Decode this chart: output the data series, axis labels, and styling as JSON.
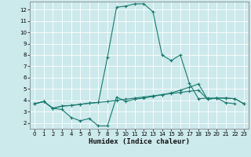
{
  "bg_color": "#cce9ec",
  "grid_color": "#ffffff",
  "line_color": "#1a7a6e",
  "xlabel": "Humidex (Indice chaleur)",
  "xlim": [
    -0.5,
    23.5
  ],
  "ylim": [
    1.5,
    12.7
  ],
  "xticks": [
    0,
    1,
    2,
    3,
    4,
    5,
    6,
    7,
    8,
    9,
    10,
    11,
    12,
    13,
    14,
    15,
    16,
    17,
    18,
    19,
    20,
    21,
    22,
    23
  ],
  "yticks": [
    2,
    3,
    4,
    5,
    6,
    7,
    8,
    9,
    10,
    11,
    12
  ],
  "series": [
    {
      "x": [
        0,
        1,
        2,
        3,
        4,
        5,
        6,
        7,
        8,
        9,
        10,
        11,
        12,
        13,
        14,
        15,
        16,
        17,
        18,
        19,
        20,
        21,
        22,
        23
      ],
      "y": [
        3.7,
        3.9,
        3.3,
        3.2,
        2.5,
        2.2,
        2.4,
        1.75,
        1.75,
        4.3,
        3.9,
        4.1,
        4.2,
        4.35,
        4.5,
        4.65,
        4.9,
        5.15,
        5.45,
        4.1,
        4.2,
        4.2,
        4.15,
        3.7
      ]
    },
    {
      "x": [
        0,
        1,
        2,
        3,
        4,
        5,
        6,
        7,
        8,
        9,
        10,
        11,
        12,
        13,
        14,
        15,
        16,
        17,
        18,
        19,
        20,
        21,
        22,
        23
      ],
      "y": [
        3.7,
        3.9,
        3.3,
        3.5,
        3.55,
        3.65,
        3.75,
        3.82,
        3.9,
        4.0,
        4.1,
        4.2,
        4.3,
        4.4,
        4.5,
        4.6,
        4.7,
        4.8,
        4.9,
        4.1,
        4.2,
        4.2,
        4.15,
        3.7
      ]
    },
    {
      "x": [
        0,
        1,
        2,
        3,
        4,
        5,
        6,
        7,
        8,
        9,
        10,
        11,
        12,
        13,
        14,
        15,
        16,
        17,
        18,
        19,
        20,
        21,
        22
      ],
      "y": [
        3.7,
        3.9,
        3.3,
        3.5,
        3.55,
        3.65,
        3.75,
        3.82,
        7.8,
        12.2,
        12.3,
        12.5,
        12.5,
        11.8,
        8.0,
        7.5,
        8.0,
        5.5,
        4.15,
        4.2,
        4.2,
        3.8,
        3.7
      ]
    }
  ]
}
